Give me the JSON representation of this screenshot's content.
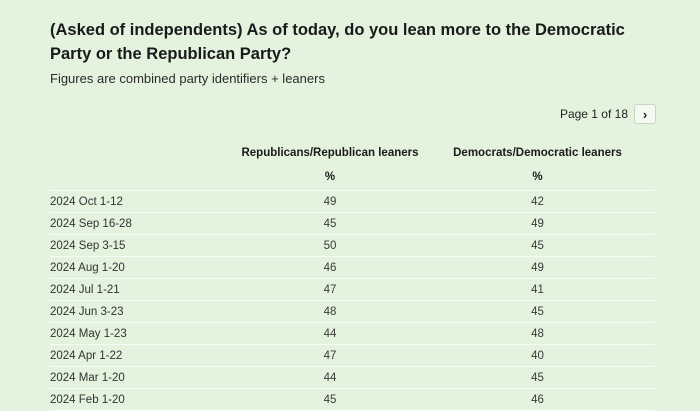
{
  "question": {
    "title": "(Asked of independents) As of today, do you lean more to the Democratic Party or the Republican Party?",
    "subtitle": "Figures are combined party identifiers + leaners"
  },
  "pagination": {
    "label": "Page 1 of 18",
    "next_icon": "chevron-right-icon",
    "next_glyph": "›"
  },
  "table": {
    "columns": [
      "",
      "Republicans/Republican leaners",
      "Democrats/Democratic leaners"
    ],
    "units": [
      "",
      "%",
      "%"
    ],
    "rows": [
      {
        "date": "2024 Oct 1-12",
        "rep": "49",
        "dem": "42"
      },
      {
        "date": "2024 Sep 16-28",
        "rep": "45",
        "dem": "49"
      },
      {
        "date": "2024 Sep 3-15",
        "rep": "50",
        "dem": "45"
      },
      {
        "date": "2024 Aug 1-20",
        "rep": "46",
        "dem": "49"
      },
      {
        "date": "2024 Jul 1-21",
        "rep": "47",
        "dem": "41"
      },
      {
        "date": "2024 Jun 3-23",
        "rep": "48",
        "dem": "45"
      },
      {
        "date": "2024 May 1-23",
        "rep": "44",
        "dem": "48"
      },
      {
        "date": "2024 Apr 1-22",
        "rep": "47",
        "dem": "40"
      },
      {
        "date": "2024 Mar 1-20",
        "rep": "44",
        "dem": "45"
      },
      {
        "date": "2024 Feb 1-20",
        "rep": "45",
        "dem": "46"
      }
    ]
  },
  "colors": {
    "background": "#e3f3de",
    "row_divider": "#f7fbf5",
    "text": "#1c1c1c"
  }
}
